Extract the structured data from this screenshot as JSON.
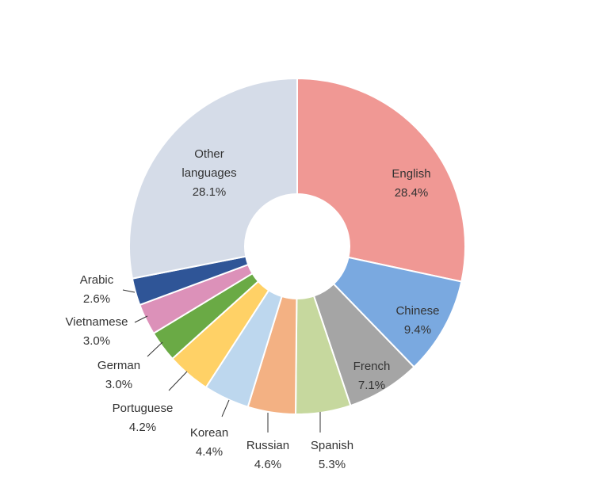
{
  "chart_data": {
    "type": "pie",
    "variant": "donut",
    "title": "",
    "start": "12 o'clock",
    "direction": "clockwise",
    "legend": "none",
    "slices": [
      {
        "name": "English",
        "value": 28.4,
        "label": "28.4%",
        "color": "#f09894"
      },
      {
        "name": "Chinese",
        "value": 9.4,
        "label": "9.4%",
        "color": "#7aa9e0"
      },
      {
        "name": "French",
        "value": 7.1,
        "label": "7.1%",
        "color": "#a5a5a5"
      },
      {
        "name": "Spanish",
        "value": 5.3,
        "label": "5.3%",
        "color": "#c6d89e"
      },
      {
        "name": "Russian",
        "value": 4.6,
        "label": "4.6%",
        "color": "#f3b183"
      },
      {
        "name": "Korean",
        "value": 4.4,
        "label": "4.4%",
        "color": "#bdd7ee"
      },
      {
        "name": "Portuguese",
        "value": 4.2,
        "label": "4.2%",
        "color": "#ffd166"
      },
      {
        "name": "German",
        "value": 3.0,
        "label": "3.0%",
        "color": "#6aaa45"
      },
      {
        "name": "Vietnamese",
        "value": 3.0,
        "label": "3.0%",
        "color": "#dc91b9"
      },
      {
        "name": "Arabic",
        "value": 2.6,
        "label": "2.6%",
        "color": "#2f5597"
      },
      {
        "name": "Other languages",
        "value": 28.1,
        "label": "28.1%",
        "color": "#d5dce8"
      }
    ]
  }
}
